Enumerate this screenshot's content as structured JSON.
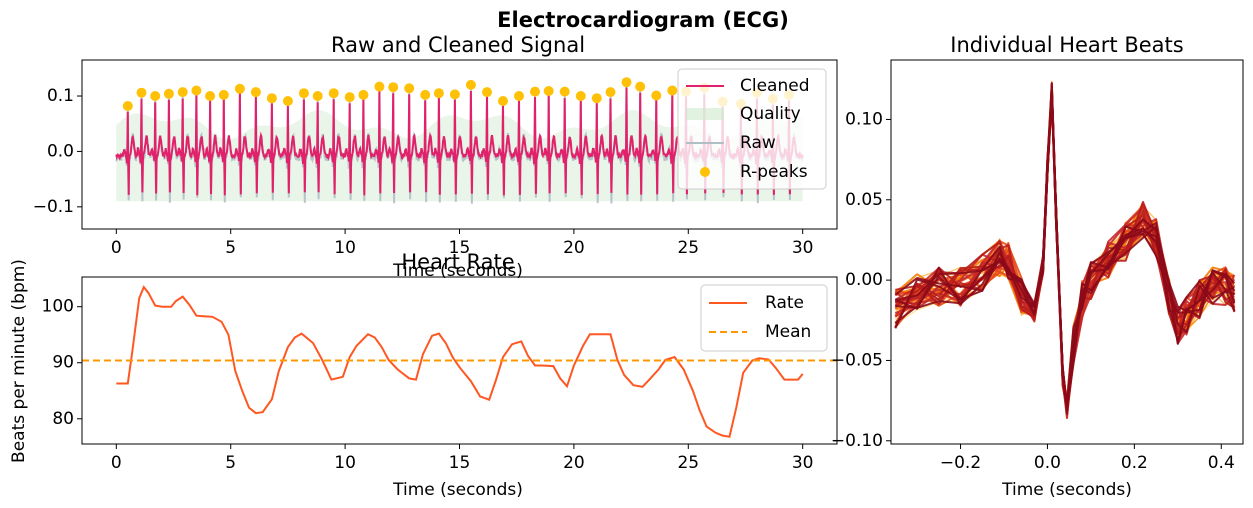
{
  "figure": {
    "suptitle": "Electrocardiogram (ECG)"
  },
  "colors": {
    "cleaned": "#E2216B",
    "raw": "#B0BEC5",
    "quality": "#CDE9CD",
    "rpeaks": "#FFC107",
    "rate": "#FF5722",
    "mean": "#FF9800",
    "beat_palette": [
      "#FFE082",
      "#FFB74D",
      "#F57C00",
      "#E64A19",
      "#C62828",
      "#B71C1C",
      "#8B0A1A"
    ]
  },
  "chart_data": [
    {
      "id": "raw_cleaned",
      "type": "line",
      "title": "Raw and Cleaned Signal",
      "xlabel": "Time (seconds)",
      "ylabel": "",
      "xlim": [
        -1.5,
        31.5
      ],
      "ylim": [
        -0.14,
        0.165
      ],
      "xticks": [
        0,
        5,
        10,
        15,
        20,
        25,
        30
      ],
      "xtick_labels": [
        "0",
        "5",
        "10",
        "15",
        "20",
        "25",
        "30"
      ],
      "yticks": [
        -0.1,
        0.0,
        0.1
      ],
      "ytick_labels": [
        "−0.1",
        "0.0",
        "0.1"
      ],
      "legend": {
        "position": "top-right",
        "entries": [
          "Cleaned",
          "Quality",
          "Raw",
          "R-peaks"
        ]
      },
      "series": [
        {
          "name": "Cleaned",
          "kind": "line"
        },
        {
          "name": "Quality",
          "kind": "area"
        },
        {
          "name": "Raw",
          "kind": "line"
        },
        {
          "name": "R-peaks",
          "kind": "scatter",
          "x": [
            0.5,
            1.1,
            1.7,
            2.3,
            2.9,
            3.5,
            4.1,
            4.7,
            5.4,
            6.1,
            6.8,
            7.5,
            8.2,
            8.8,
            9.5,
            10.2,
            10.8,
            11.5,
            12.1,
            12.8,
            13.5,
            14.1,
            14.8,
            15.5,
            16.2,
            16.9,
            17.6,
            18.3,
            18.9,
            19.6,
            20.3,
            21.0,
            21.6,
            22.3,
            22.9,
            23.6,
            24.3,
            24.9,
            25.7,
            26.5,
            27.3,
            28.0,
            28.7,
            29.4
          ],
          "y": [
            0.082,
            0.106,
            0.1,
            0.104,
            0.107,
            0.11,
            0.1,
            0.102,
            0.113,
            0.107,
            0.096,
            0.091,
            0.105,
            0.1,
            0.105,
            0.098,
            0.102,
            0.117,
            0.116,
            0.114,
            0.102,
            0.105,
            0.103,
            0.12,
            0.107,
            0.091,
            0.1,
            0.108,
            0.109,
            0.108,
            0.1,
            0.096,
            0.107,
            0.125,
            0.117,
            0.101,
            0.11,
            0.108,
            0.115,
            0.09,
            0.086,
            0.106,
            0.095,
            0.102
          ]
        }
      ]
    },
    {
      "id": "heart_rate",
      "type": "line",
      "title": "Heart Rate",
      "xlabel": "Time (seconds)",
      "ylabel": "Beats per minute (bpm)",
      "xlim": [
        -1.5,
        31.5
      ],
      "ylim": [
        75.5,
        105.3
      ],
      "xticks": [
        0,
        5,
        10,
        15,
        20,
        25,
        30
      ],
      "xtick_labels": [
        "0",
        "5",
        "10",
        "15",
        "20",
        "25",
        "30"
      ],
      "yticks": [
        80,
        90,
        100
      ],
      "ytick_labels": [
        "80",
        "90",
        "100"
      ],
      "legend": {
        "position": "top-right",
        "entries": [
          "Rate",
          "Mean"
        ]
      },
      "mean": 90.4,
      "series": [
        {
          "name": "Rate",
          "x": [
            0.0,
            0.5,
            0.7,
            1.0,
            1.2,
            1.4,
            1.7,
            2.0,
            2.4,
            2.6,
            2.9,
            3.2,
            3.5,
            3.8,
            4.2,
            4.6,
            4.9,
            5.2,
            5.5,
            5.8,
            6.1,
            6.4,
            6.8,
            7.1,
            7.5,
            7.8,
            8.1,
            8.6,
            9.0,
            9.4,
            9.9,
            10.2,
            10.5,
            11.0,
            11.3,
            11.6,
            11.9,
            12.3,
            12.8,
            13.1,
            13.4,
            13.8,
            14.1,
            14.4,
            14.7,
            15.0,
            15.5,
            15.9,
            16.3,
            16.6,
            16.9,
            17.3,
            17.7,
            18.0,
            18.3,
            18.6,
            19.1,
            19.4,
            19.7,
            20.0,
            20.4,
            20.7,
            21.1,
            21.6,
            21.9,
            22.2,
            22.6,
            23.0,
            23.3,
            23.7,
            24.0,
            24.4,
            24.8,
            25.2,
            25.5,
            25.8,
            26.2,
            26.5,
            26.8,
            27.1,
            27.4,
            27.8,
            28.1,
            28.5,
            28.8,
            29.2,
            29.5,
            29.8,
            30.0
          ],
          "y": [
            86.3,
            86.3,
            92.0,
            101.5,
            103.5,
            102.5,
            100.2,
            100.0,
            100.0,
            101.0,
            101.8,
            100.3,
            98.4,
            98.3,
            98.2,
            97.3,
            95.0,
            88.5,
            85.0,
            82.0,
            81.0,
            81.2,
            83.5,
            88.5,
            92.8,
            94.5,
            95.2,
            93.5,
            90.5,
            87.0,
            87.5,
            91.0,
            93.0,
            95.1,
            94.5,
            92.8,
            90.5,
            88.8,
            87.2,
            87.0,
            91.5,
            94.8,
            95.2,
            93.5,
            91.0,
            89.2,
            86.7,
            84.0,
            83.4,
            87.0,
            91.0,
            93.3,
            93.8,
            91.2,
            89.5,
            89.5,
            89.4,
            87.2,
            85.8,
            89.5,
            93.0,
            95.1,
            95.1,
            95.1,
            90.5,
            87.8,
            86.0,
            85.7,
            87.0,
            88.8,
            90.5,
            91.0,
            88.8,
            85.0,
            81.5,
            78.6,
            77.5,
            77.0,
            76.8,
            82.0,
            88.2,
            90.4,
            90.8,
            90.6,
            89.2,
            87.0,
            87.0,
            87.0,
            88.0
          ]
        }
      ]
    },
    {
      "id": "heartbeats",
      "type": "line",
      "title": "Individual Heart Beats",
      "xlabel": "Time (seconds)",
      "ylabel": "",
      "xlim": [
        -0.36,
        0.45
      ],
      "ylim": [
        -0.102,
        0.137
      ],
      "xticks": [
        -0.2,
        0.0,
        0.2,
        0.4
      ],
      "xtick_labels": [
        "−0.2",
        "0.0",
        "0.2",
        "0.4"
      ],
      "yticks": [
        -0.1,
        -0.05,
        0.0,
        0.05,
        0.1
      ],
      "ytick_labels": [
        "−0.10",
        "−0.05",
        "0.00",
        "0.05",
        "0.10"
      ],
      "template": {
        "x": [
          -0.35,
          -0.3,
          -0.25,
          -0.2,
          -0.15,
          -0.11,
          -0.09,
          -0.06,
          -0.03,
          -0.01,
          0.0,
          0.01,
          0.02,
          0.035,
          0.045,
          0.06,
          0.08,
          0.1,
          0.14,
          0.18,
          0.22,
          0.25,
          0.28,
          0.3,
          0.32,
          0.35,
          0.38,
          0.41,
          0.43
        ],
        "y": [
          -0.018,
          -0.008,
          -0.004,
          -0.004,
          0.004,
          0.014,
          0.012,
          -0.01,
          -0.02,
          0.01,
          0.07,
          0.118,
          0.04,
          -0.06,
          -0.08,
          -0.04,
          -0.012,
          0.0,
          0.012,
          0.024,
          0.038,
          0.026,
          -0.01,
          -0.028,
          -0.022,
          -0.012,
          -0.004,
          -0.004,
          -0.008
        ]
      }
    }
  ]
}
